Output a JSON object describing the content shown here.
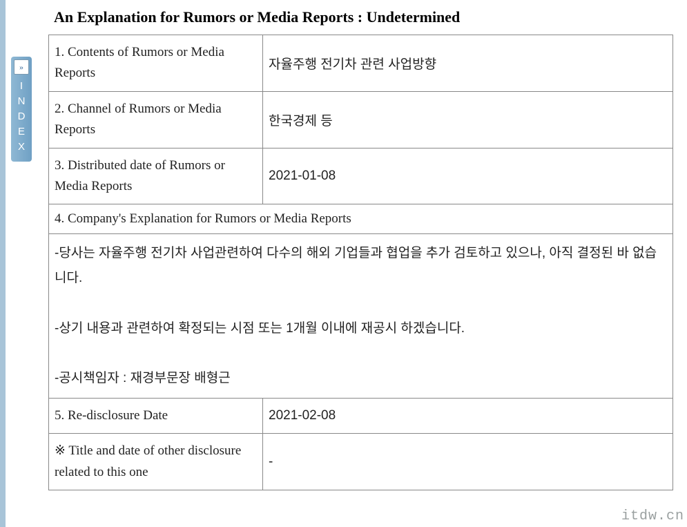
{
  "sidebar": {
    "expand_icon": "»",
    "letters": [
      "I",
      "N",
      "D",
      "E",
      "X"
    ],
    "strip_color": "#a8c4d8",
    "tab_gradient_from": "#8fb8d4",
    "tab_gradient_to": "#6fa0c4"
  },
  "header": {
    "title": "An Explanation for Rumors or Media Reports : Undetermined"
  },
  "table": {
    "border_color": "#888888",
    "rows": [
      {
        "label": "1. Contents of Rumors or Media Reports",
        "value": "자율주행 전기차 관련 사업방향"
      },
      {
        "label": "2. Channel of Rumors or Media Reports",
        "value": "한국경제 등"
      },
      {
        "label": "3. Distributed date of Rumors or Media Reports",
        "value": "2021-01-08"
      }
    ],
    "section4": {
      "header": "4. Company's Explanation for Rumors or Media Reports",
      "body": "-당사는 자율주행 전기차 사업관련하여 다수의 해외 기업들과 협업을 추가 검토하고 있으나, 아직 결정된 바 없습니다.\n\n-상기 내용과 관련하여 확정되는 시점 또는 1개월 이내에 재공시 하겠습니다.\n\n-공시책임자 : 재경부문장 배형근"
    },
    "row5": {
      "label": "5. Re-disclosure Date",
      "value": "2021-02-08"
    },
    "note": {
      "label": "※ Title and date of other disclosure related to this one",
      "value": "-"
    }
  },
  "watermark": "itdw.cn",
  "colors": {
    "text": "#222222",
    "body_text": "#333333",
    "title": "#000000",
    "watermark": "#9aa0a0"
  }
}
